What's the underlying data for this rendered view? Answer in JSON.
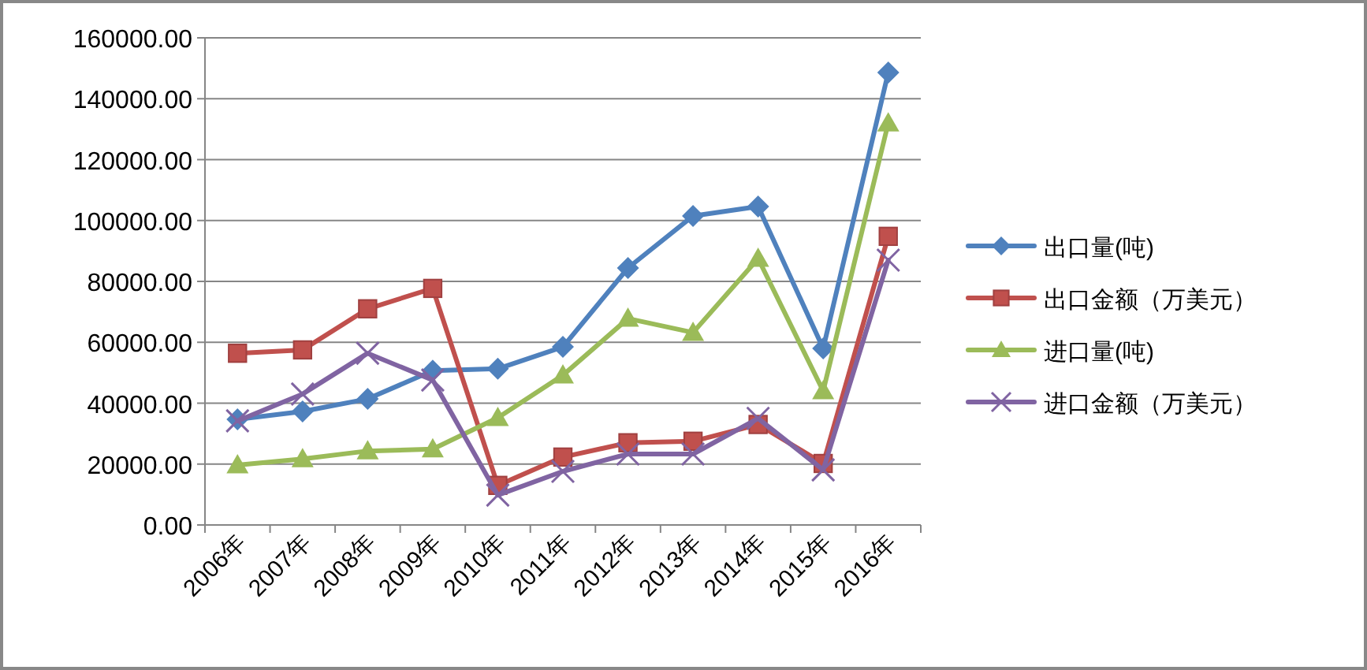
{
  "chart_data": {
    "type": "line",
    "categories": [
      "2006年",
      "2007年",
      "2008年",
      "2009年",
      "2010年",
      "2011年",
      "2012年",
      "2013年",
      "2014年",
      "2015年",
      "2016年"
    ],
    "series": [
      {
        "name": "出口量(吨)",
        "color": "#4f81bd",
        "marker": "diamond",
        "values": [
          34700,
          37300,
          41400,
          50700,
          51300,
          58500,
          84400,
          101500,
          104600,
          58000,
          148600
        ]
      },
      {
        "name": "出口金额（万美元）",
        "color": "#c0504d",
        "marker": "square",
        "values": [
          56400,
          57500,
          71000,
          77700,
          13000,
          22300,
          27000,
          27500,
          33000,
          20200,
          94800
        ]
      },
      {
        "name": "进口量(吨)",
        "color": "#9bbb59",
        "marker": "triangle",
        "values": [
          19700,
          21700,
          24300,
          24900,
          35200,
          49200,
          67800,
          63200,
          87500,
          44000,
          132000
        ]
      },
      {
        "name": "进口金额（万美元）",
        "color": "#8064a2",
        "marker": "cross",
        "values": [
          34200,
          43000,
          56400,
          47600,
          9800,
          17600,
          23300,
          23300,
          35000,
          18100,
          87000
        ]
      }
    ],
    "ylim": [
      0,
      160000
    ],
    "yticks": [
      {
        "value": 0,
        "label": "0.00"
      },
      {
        "value": 20000,
        "label": "20000.00"
      },
      {
        "value": 40000,
        "label": "40000.00"
      },
      {
        "value": 60000,
        "label": "60000.00"
      },
      {
        "value": 80000,
        "label": "80000.00"
      },
      {
        "value": 100000,
        "label": "100000.00"
      },
      {
        "value": 120000,
        "label": "120000.00"
      },
      {
        "value": 140000,
        "label": "140000.00"
      },
      {
        "value": 160000,
        "label": "160000.00"
      }
    ],
    "grid": "y",
    "legend": "right"
  }
}
